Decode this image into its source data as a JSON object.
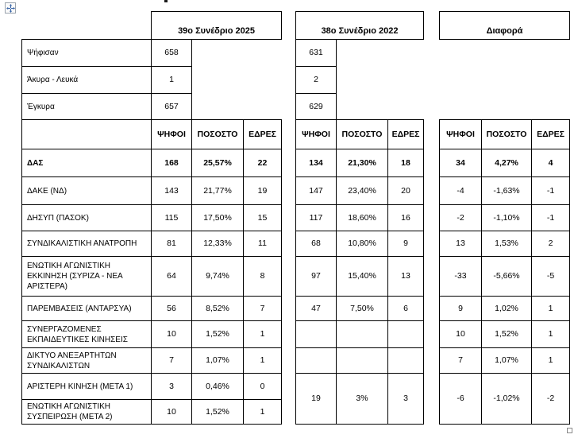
{
  "group_headers": [
    "39ο Συνέδριο 2025",
    "38ο Συνέδριο 2022",
    "Διαφορά"
  ],
  "col_headers": [
    "ΨΗΦΟΙ",
    "ΠΟΣΟΣΤΟ",
    "ΕΔΡΕΣ"
  ],
  "summary_rows": [
    {
      "label": "Ψήφισαν",
      "v2025": "658",
      "v2022": "631"
    },
    {
      "label": "Άκυρα - Λευκά",
      "v2025": "1",
      "v2022": "2"
    },
    {
      "label": "Έγκυρα",
      "v2025": "657",
      "v2022": "629"
    }
  ],
  "parties": [
    {
      "name": "ΔΑΣ",
      "bold": true,
      "y2025": [
        "168",
        "25,57%",
        "22"
      ],
      "y2022": [
        "134",
        "21,30%",
        "18"
      ],
      "diff": [
        "34",
        "4,27%",
        "4"
      ]
    },
    {
      "name": "ΔΑΚΕ (ΝΔ)",
      "y2025": [
        "143",
        "21,77%",
        "19"
      ],
      "y2022": [
        "147",
        "23,40%",
        "20"
      ],
      "diff": [
        "-4",
        "-1,63%",
        "-1"
      ]
    },
    {
      "name": "ΔΗΣΥΠ (ΠΑΣΟΚ)",
      "y2025": [
        "115",
        "17,50%",
        "15"
      ],
      "y2022": [
        "117",
        "18,60%",
        "16"
      ],
      "diff": [
        "-2",
        "-1,10%",
        "-1"
      ]
    },
    {
      "name": "ΣΥΝΔΙΚΑΛΙΣΤΙΚΗ ΑΝΑΤΡΟΠΗ",
      "y2025": [
        "81",
        "12,33%",
        "11"
      ],
      "y2022": [
        "68",
        "10,80%",
        "9"
      ],
      "diff": [
        "13",
        "1,53%",
        "2"
      ]
    },
    {
      "name": "ΕΝΩΤΙΚΗ ΑΓΩΝΙΣΤΙΚΗ ΕΚΚΙΝΗΣΗ (ΣΥΡΙΖΑ - ΝΕΑ ΑΡΙΣΤΕΡΑ)",
      "y2025": [
        "64",
        "9,74%",
        "8"
      ],
      "y2022": [
        "97",
        "15,40%",
        "13"
      ],
      "diff": [
        "-33",
        "-5,66%",
        "-5"
      ]
    },
    {
      "name": "ΠΑΡΕΜΒΑΣΕΙΣ (ΑΝΤΑΡΣΥΑ)",
      "y2025": [
        "56",
        "8,52%",
        "7"
      ],
      "y2022": [
        "47",
        "7,50%",
        "6"
      ],
      "diff": [
        "9",
        "1,02%",
        "1"
      ]
    },
    {
      "name": "ΣΥΝΕΡΓΑΖΟΜΕΝΕΣ ΕΚΠΑΙΔΕΥΤΙΚΕΣ ΚΙΝΗΣΕΙΣ",
      "y2025": [
        "10",
        "1,52%",
        "1"
      ],
      "y2022": [
        "",
        "",
        ""
      ],
      "diff": [
        "10",
        "1,52%",
        "1"
      ]
    },
    {
      "name": "ΔΙΚΤΥΟ ΑΝΕΞΑΡΤΗΤΩΝ ΣΥΝΔΙΚΑΛΙΣΤΩΝ",
      "y2025": [
        "7",
        "1,07%",
        "1"
      ],
      "y2022": [
        "",
        "",
        ""
      ],
      "diff": [
        "7",
        "1,07%",
        "1"
      ]
    },
    {
      "name": "ΑΡΙΣΤΕΡΗ ΚΙΝΗΣΗ (ΜΕΤΑ 1)",
      "y2025": [
        "3",
        "0,46%",
        "0"
      ],
      "y2022_merged": [
        "19",
        "3%",
        "3"
      ],
      "diff_merged": [
        "-6",
        "-1,02%",
        "-2"
      ]
    },
    {
      "name": "ΕΝΩΤΙΚΗ ΑΓΩΝΙΣΤΙΚΗ ΣΥΣΠΕΙΡΩΣΗ (ΜΕΤΑ 2)",
      "y2025": [
        "10",
        "1,52%",
        "1"
      ]
    }
  ],
  "icons": {
    "move_handle": "table-move-handle",
    "resize_handle": "table-resize-handle"
  },
  "colors": {
    "border": "#000000",
    "text": "#000000",
    "move_arrow": "#3a66a8"
  }
}
